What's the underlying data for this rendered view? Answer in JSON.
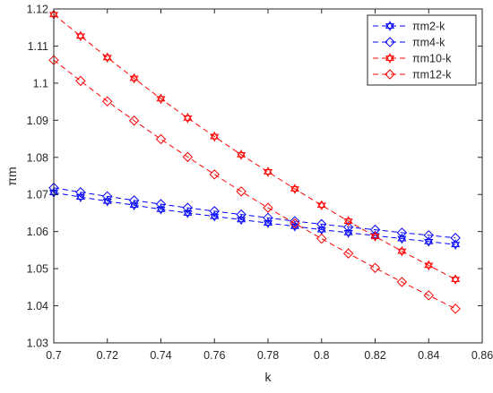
{
  "chart_data": {
    "type": "line",
    "xlabel": "k",
    "ylabel": "πm",
    "xlim": [
      0.7,
      0.86
    ],
    "ylim": [
      1.03,
      1.12
    ],
    "xticks": [
      0.7,
      0.72,
      0.74,
      0.76,
      0.78,
      0.8,
      0.82,
      0.84,
      0.86
    ],
    "yticks": [
      1.03,
      1.04,
      1.05,
      1.06,
      1.07,
      1.08,
      1.09,
      1.1,
      1.11,
      1.12
    ],
    "xtick_labels": [
      "0.7",
      "0.72",
      "0.74",
      "0.76",
      "0.78",
      "0.8",
      "0.82",
      "0.84",
      "0.86"
    ],
    "ytick_labels": [
      "1.03",
      "1.04",
      "1.05",
      "1.06",
      "1.07",
      "1.08",
      "1.09",
      "1.1",
      "1.11",
      "1.12"
    ],
    "grid": false,
    "legend_position": "top-right",
    "x": [
      0.7,
      0.71,
      0.72,
      0.73,
      0.74,
      0.75,
      0.76,
      0.77,
      0.78,
      0.79,
      0.8,
      0.81,
      0.82,
      0.83,
      0.84,
      0.85
    ],
    "series": [
      {
        "name": "πm2-k",
        "color": "#0000ff",
        "marker": "hexagram",
        "values": [
          1.0705,
          1.0693,
          1.0682,
          1.0671,
          1.066,
          1.065,
          1.0641,
          1.0632,
          1.0623,
          1.0614,
          1.0605,
          1.0597,
          1.0589,
          1.0581,
          1.0573,
          1.0565
        ]
      },
      {
        "name": "πm4-k",
        "color": "#0000ff",
        "marker": "diamond",
        "values": [
          1.0718,
          1.0706,
          1.0695,
          1.0684,
          1.0674,
          1.0664,
          1.0655,
          1.0646,
          1.0637,
          1.0628,
          1.062,
          1.0612,
          1.0605,
          1.0597,
          1.059,
          1.0583
        ]
      },
      {
        "name": "πm10-k",
        "color": "#ff0000",
        "marker": "hexagram",
        "values": [
          1.1185,
          1.1127,
          1.1069,
          1.1013,
          1.0958,
          1.0906,
          1.0856,
          1.0807,
          1.0761,
          1.0715,
          1.0671,
          1.0628,
          1.0587,
          1.0547,
          1.0509,
          1.0471
        ]
      },
      {
        "name": "πm12-k",
        "color": "#ff0000",
        "marker": "diamond",
        "values": [
          1.1062,
          1.1006,
          1.0951,
          1.0899,
          1.0849,
          1.0801,
          1.0754,
          1.0708,
          1.0664,
          1.0622,
          1.0581,
          1.0541,
          1.0502,
          1.0464,
          1.0428,
          1.0392
        ]
      }
    ]
  }
}
